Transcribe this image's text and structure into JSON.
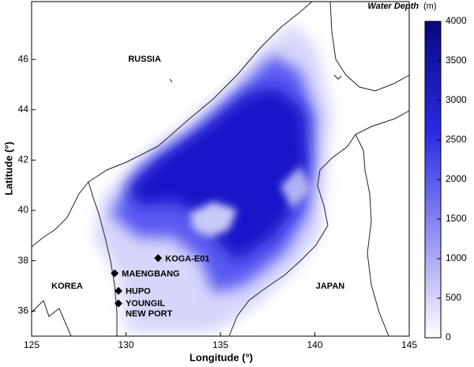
{
  "axes": {
    "xlabel": "Longitude (°)",
    "ylabel": "Latitude (°)",
    "xlim": [
      125,
      145
    ],
    "ylim": [
      35,
      48.3
    ],
    "xticks": [
      125,
      130,
      135,
      140,
      145
    ],
    "yticks": [
      36,
      38,
      40,
      42,
      44,
      46
    ]
  },
  "colorbar": {
    "title": "Water Depth",
    "unit": "(m)",
    "lim": [
      0,
      4000
    ],
    "ticks": [
      0,
      500,
      1000,
      1500,
      2000,
      2500,
      3000,
      3500,
      4000
    ]
  },
  "regions": [
    "RUSSIA",
    "KOREA",
    "JAPAN"
  ],
  "stations": [
    {
      "label": "KOGA-E01",
      "lon": 131.7,
      "lat": 38.1
    },
    {
      "label": "MAENGBANG",
      "lon": 129.4,
      "lat": 37.5
    },
    {
      "label": "HUPO",
      "lon": 129.6,
      "lat": 36.8
    },
    {
      "label": "YOUNGIL NEW PORT",
      "lon": 129.6,
      "lat": 36.3
    }
  ]
}
